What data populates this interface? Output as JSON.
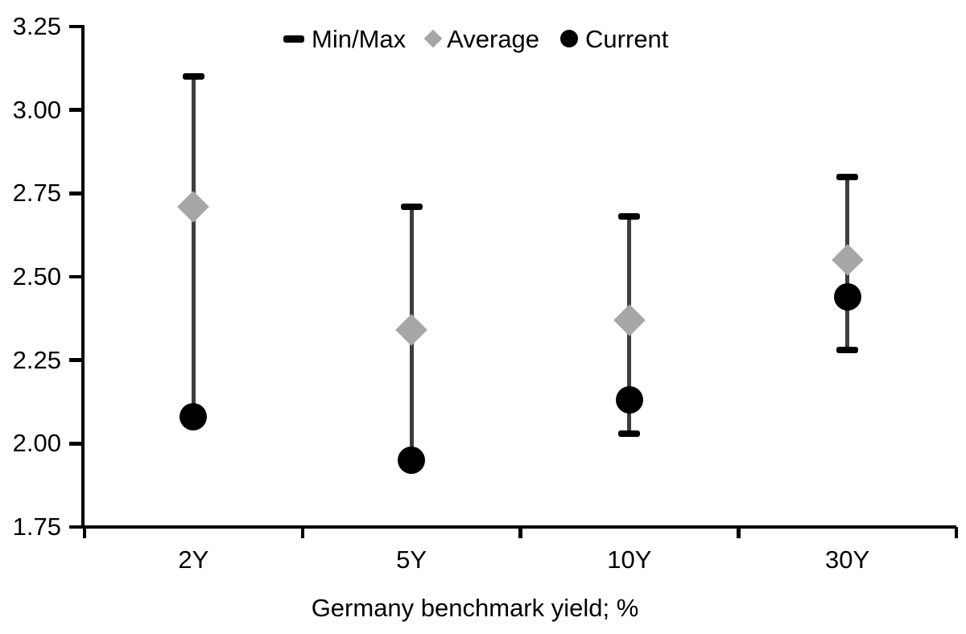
{
  "chart_data": {
    "type": "scatter",
    "subtype": "min-max-range-with-markers",
    "title": "",
    "xlabel": "Germany benchmark yield; %",
    "ylabel": "",
    "categories": [
      "2Y",
      "5Y",
      "10Y",
      "30Y"
    ],
    "series": [
      {
        "name": "Min/Max",
        "marker": "dash",
        "color": "#000000",
        "max": [
          3.1,
          2.71,
          2.68,
          2.8
        ],
        "min": [
          2.08,
          1.95,
          2.03,
          2.28
        ]
      },
      {
        "name": "Average",
        "marker": "diamond",
        "color": "#a6a6a6",
        "values": [
          2.71,
          2.34,
          2.37,
          2.55
        ]
      },
      {
        "name": "Current",
        "marker": "circle",
        "color": "#000000",
        "values": [
          2.08,
          1.95,
          2.13,
          2.44
        ]
      }
    ],
    "ylim": [
      1.75,
      3.25
    ],
    "yticks": [
      3.25,
      3.0,
      2.75,
      2.5,
      2.25,
      2.0,
      1.75
    ],
    "ytick_decimals": 2,
    "grid": false,
    "legend_position": "top-center",
    "whisker_line_color": "#3d3d3d",
    "background_color": "#ffffff",
    "text_color": "#000000"
  }
}
